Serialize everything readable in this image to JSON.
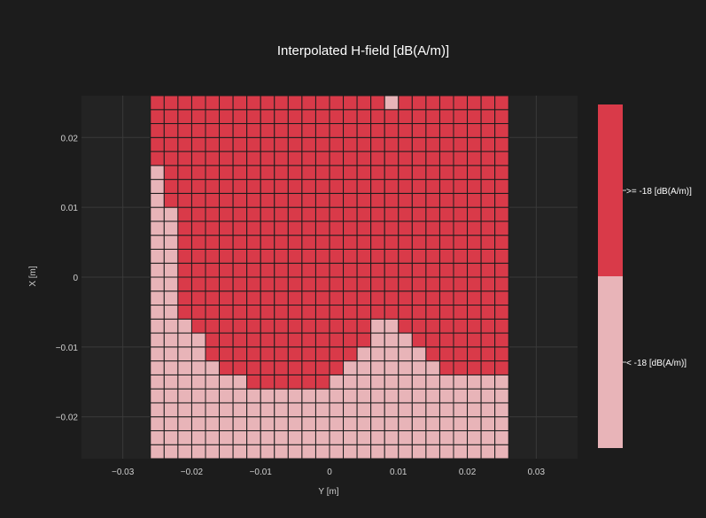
{
  "chart_data": {
    "type": "heatmap",
    "title": "Interpolated H-field [dB(A/m)]",
    "xlabel": "Y [m]",
    "ylabel": "X [m]",
    "xlim": [
      -0.036,
      0.036
    ],
    "ylim": [
      -0.026,
      0.026
    ],
    "x_ticks": [
      -0.03,
      -0.02,
      -0.01,
      0,
      0.01,
      0.02,
      0.03
    ],
    "x_tick_labels": [
      "−0.03",
      "−0.02",
      "−0.01",
      "0",
      "0.01",
      "0.02",
      "0.03"
    ],
    "y_ticks": [
      -0.02,
      -0.01,
      0,
      0.01,
      0.02
    ],
    "y_tick_labels": [
      "−0.02",
      "−0.01",
      "0",
      "0.01",
      "0.02"
    ],
    "grid": true,
    "cell_size": 0.002,
    "y_start": -0.025,
    "x_start": -0.025,
    "n_cols": 26,
    "n_rows": 26,
    "threshold_profile_note": "for each column (left to right), the X value below which cells are < -18; top-row exception at column 17",
    "low_limit": [
      -0.025,
      -0.025,
      -0.025,
      -0.025,
      -0.025,
      -0.025,
      -0.025,
      -0.025,
      -0.025,
      -0.025,
      -0.025,
      -0.025,
      -0.025,
      -0.025,
      -0.025,
      -0.025,
      -0.025,
      -0.025,
      -0.025,
      -0.025,
      -0.025,
      -0.025,
      -0.025,
      -0.025,
      -0.025,
      -0.025
    ],
    "boundary": [
      0.015,
      0.009,
      -0.007,
      -0.009,
      -0.013,
      -0.015,
      -0.015,
      -0.017,
      -0.017,
      -0.017,
      -0.017,
      -0.017,
      -0.017,
      -0.015,
      -0.013,
      -0.011,
      -0.007,
      -0.007,
      -0.009,
      -0.011,
      -0.013,
      -0.015,
      -0.015,
      -0.015,
      -0.015,
      -0.015
    ],
    "exceptions": [
      {
        "col": 17,
        "row_x": 0.025,
        "category": 0
      }
    ],
    "categories": [
      {
        "label": "< -18 [dB(A/m)]",
        "color": "#e8b4b8"
      },
      {
        "label": ">= -18 [dB(A/m)]",
        "color": "#d93a49"
      }
    ],
    "legend_placement": "right"
  },
  "colors": {
    "background": "#1c1c1c",
    "plot_background": "#232323",
    "grid": "#3a3a3a",
    "text": "#ffffff",
    "tick_text": "#cfcfcf",
    "cell_border": "#1c1c1c"
  }
}
